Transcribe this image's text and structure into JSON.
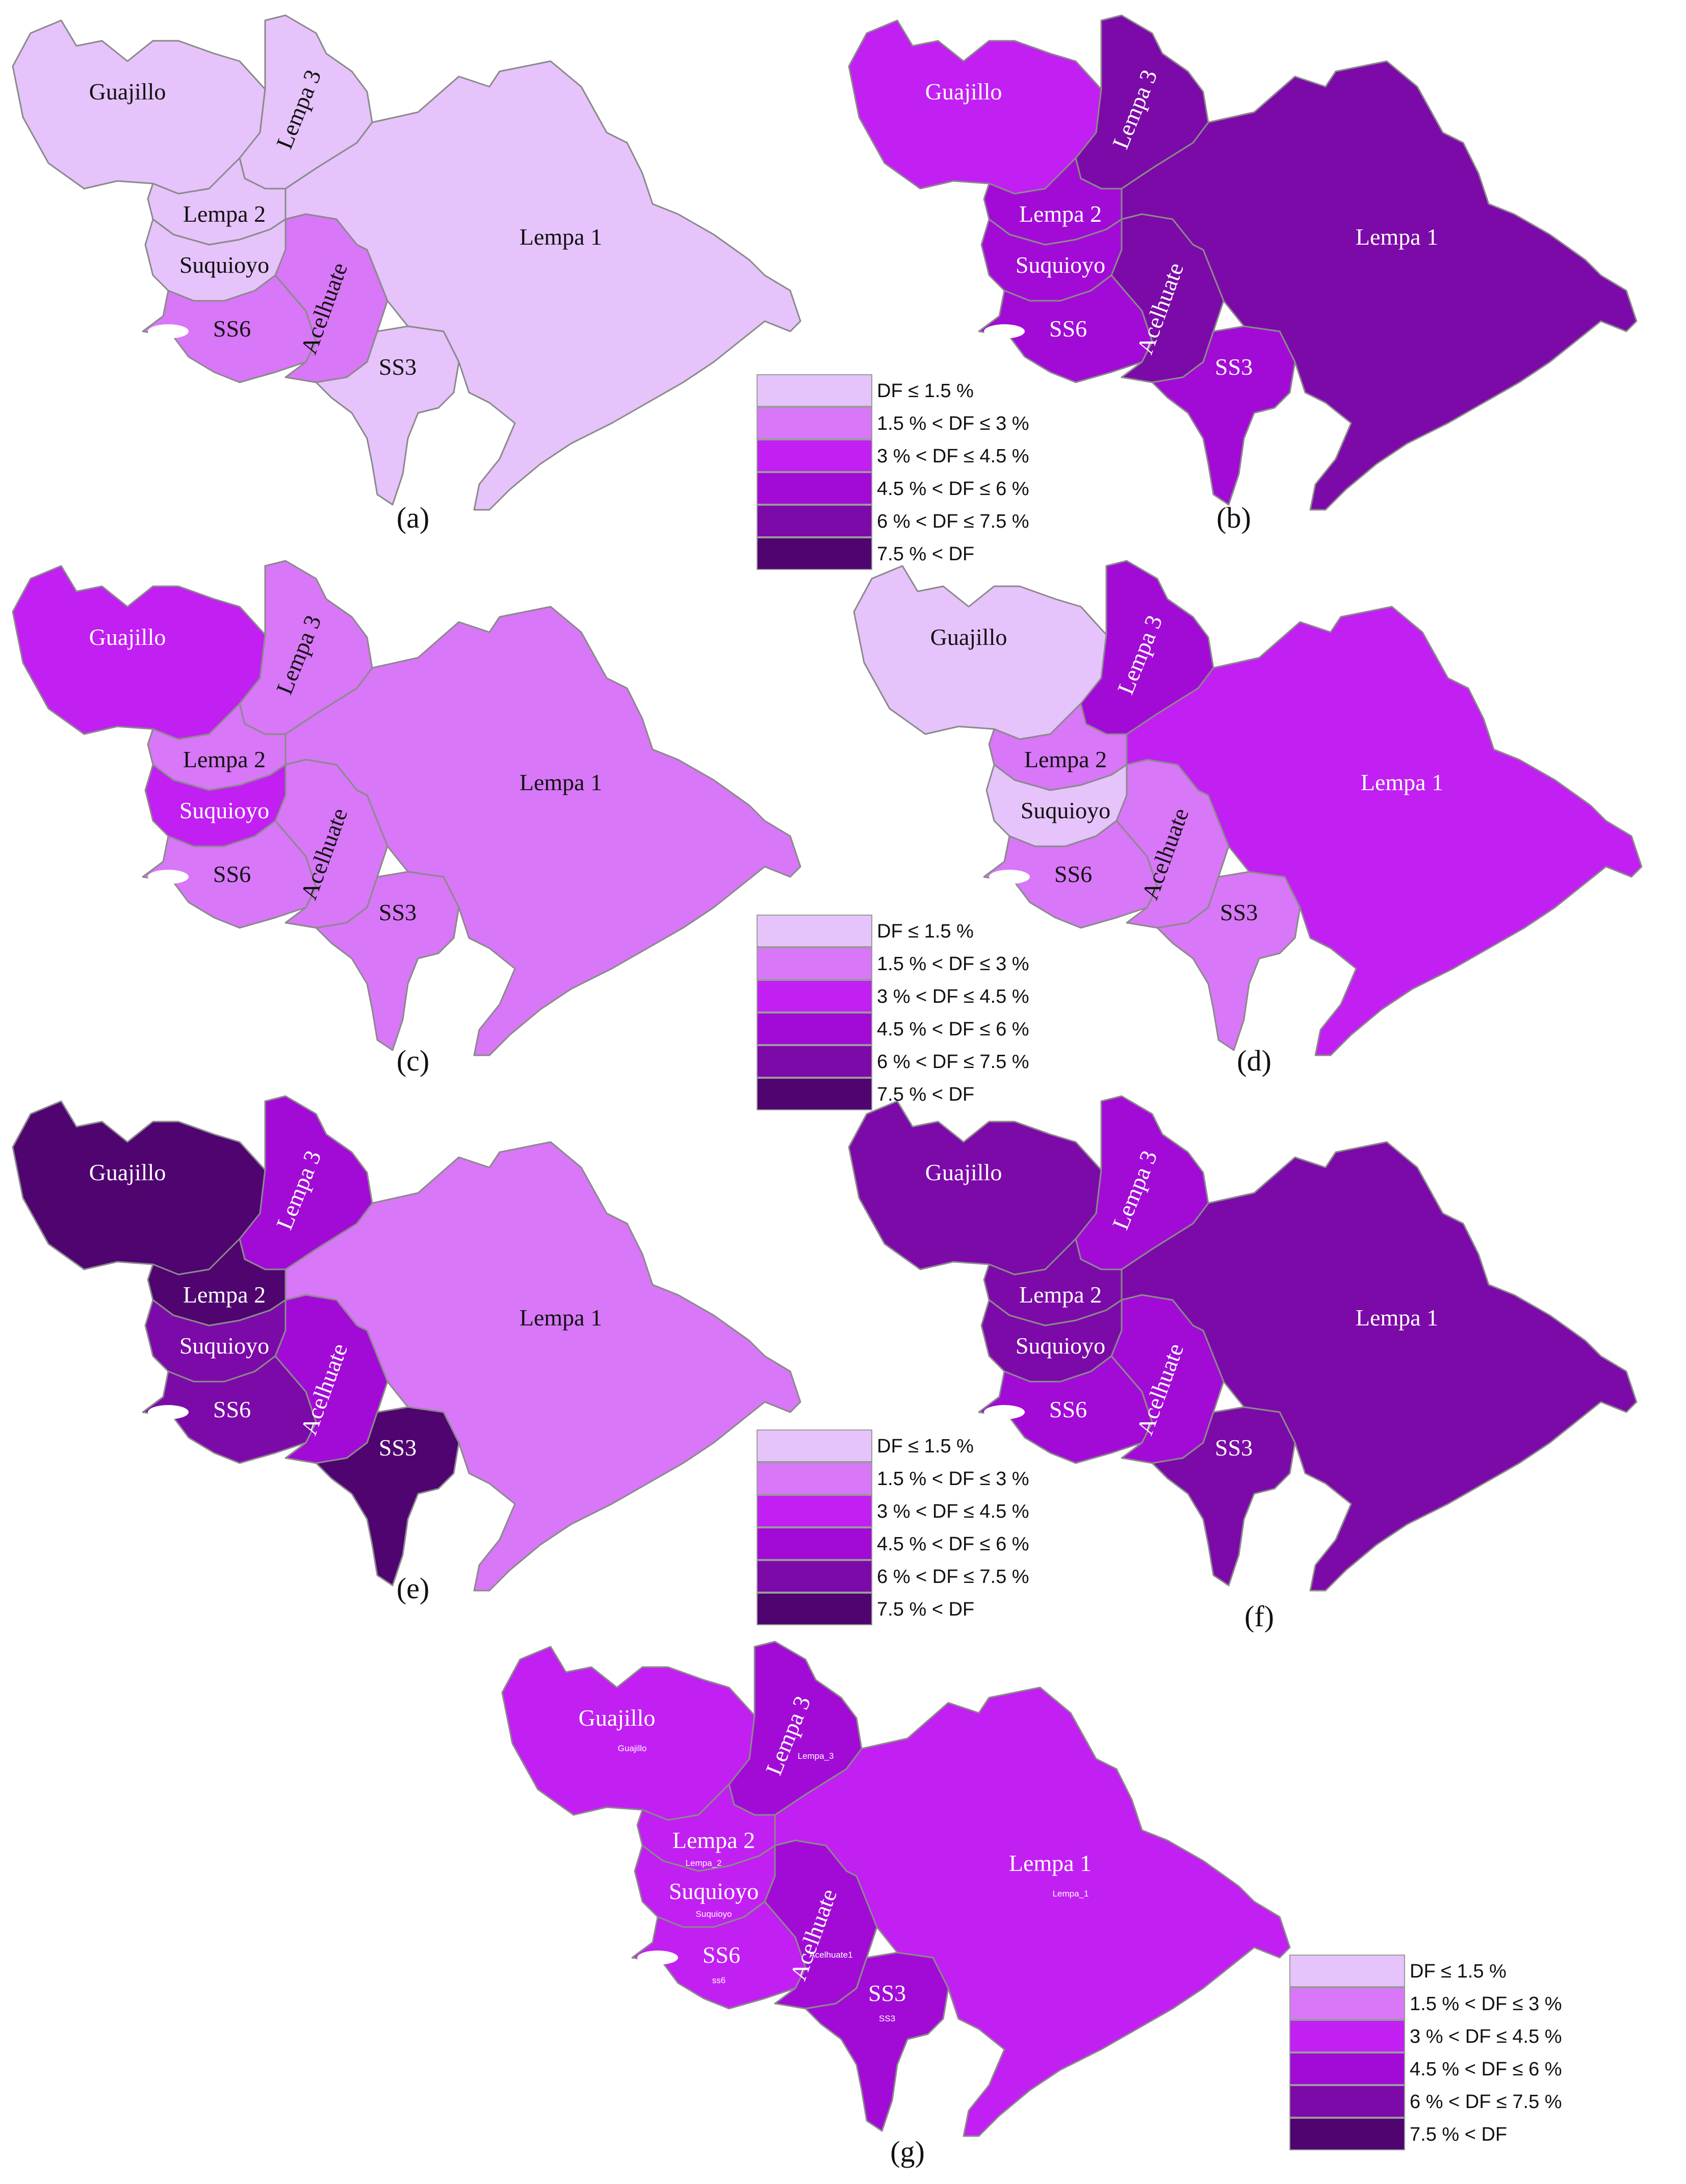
{
  "legend": {
    "classes": [
      {
        "label": "DF ≤ 1.5 %",
        "color": "#e6c3fb"
      },
      {
        "label": "1.5 % < DF ≤ 3 %",
        "color": "#d877f7"
      },
      {
        "label": "3 % < DF ≤ 4.5 %",
        "color": "#c21ff2"
      },
      {
        "label": "4.5 % < DF ≤ 6 %",
        "color": "#a20bd6"
      },
      {
        "label": "6 % < DF ≤ 7.5 %",
        "color": "#7c0aa8"
      },
      {
        "label": "7.5 % < DF",
        "color": "#4f0470"
      }
    ]
  },
  "region_names": {
    "guajillo": "Guajillo",
    "lempa3": "Lempa 3",
    "lempa2": "Lempa 2",
    "suquioyo": "Suquioyo",
    "lempa1": "Lempa 1",
    "ss6": "SS6",
    "acelhuate": "Acelhuate",
    "ss3": "SS3"
  },
  "panels": [
    {
      "letter": "(a)",
      "classes": {
        "guajillo": 0,
        "lempa3": 0,
        "lempa2": 0,
        "suquioyo": 0,
        "lempa1": 0,
        "ss6": 1,
        "acelhuate": 1,
        "ss3": 0
      }
    },
    {
      "letter": "(b)",
      "classes": {
        "guajillo": 2,
        "lempa3": 4,
        "lempa2": 3,
        "suquioyo": 3,
        "lempa1": 4,
        "ss6": 3,
        "acelhuate": 4,
        "ss3": 3
      }
    },
    {
      "letter": "(c)",
      "classes": {
        "guajillo": 2,
        "lempa3": 1,
        "lempa2": 1,
        "suquioyo": 2,
        "lempa1": 1,
        "ss6": 1,
        "acelhuate": 1,
        "ss3": 1
      }
    },
    {
      "letter": "(d)",
      "classes": {
        "guajillo": 0,
        "lempa3": 3,
        "lempa2": 1,
        "suquioyo": 0,
        "lempa1": 2,
        "ss6": 1,
        "acelhuate": 1,
        "ss3": 1
      }
    },
    {
      "letter": "(e)",
      "classes": {
        "guajillo": 5,
        "lempa3": 3,
        "lempa2": 5,
        "suquioyo": 4,
        "lempa1": 1,
        "ss6": 4,
        "acelhuate": 3,
        "ss3": 5
      }
    },
    {
      "letter": "(f)",
      "classes": {
        "guajillo": 4,
        "lempa3": 3,
        "lempa2": 4,
        "suquioyo": 4,
        "lempa1": 4,
        "ss6": 3,
        "acelhuate": 3,
        "ss3": 4
      }
    },
    {
      "letter": "(g)",
      "classes": {
        "guajillo": 2,
        "lempa3": 3,
        "lempa2": 2,
        "suquioyo": 2,
        "lempa1": 2,
        "ss6": 2,
        "acelhuate": 3,
        "ss3": 3
      }
    }
  ],
  "panel_g_sublabels": {
    "guajillo": "Guajillo",
    "lempa3": "Lempa_3",
    "lempa2": "Lempa_2",
    "suquioyo": "Suquioyo",
    "ss6": "ss6",
    "acelhuate": "Acelhuate1",
    "ss3": "SS3",
    "lempa1": "Lempa_1"
  }
}
